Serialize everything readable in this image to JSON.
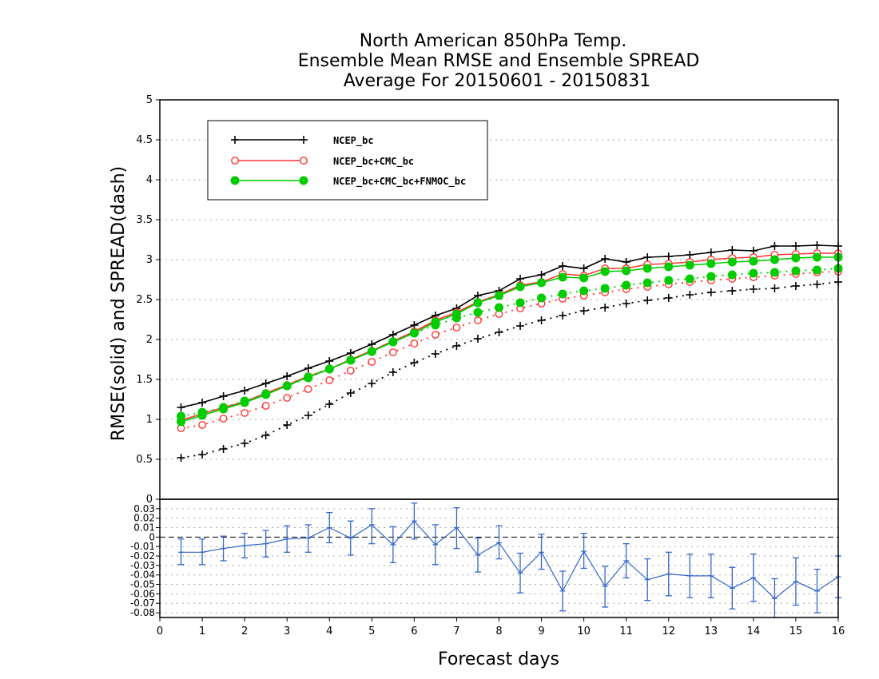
{
  "chart_data": [
    {
      "type": "line",
      "title": [
        "North American 850hPa Temp.",
        "Ensemble Mean RMSE and Ensemble SPREAD",
        "Average For 20150601 - 20150831"
      ],
      "ylabel": "RMSE(solid)  and  SPREAD(dash)",
      "xlabel": "Forecast days",
      "xlim": [
        0,
        16
      ],
      "ylim": [
        0,
        5
      ],
      "yticks": [
        0,
        0.5,
        1,
        1.5,
        2,
        2.5,
        3,
        3.5,
        4,
        4.5,
        5
      ],
      "ytick_labels": [
        "0",
        "0.5",
        "1",
        "1.5",
        "2",
        "2.5",
        "3",
        "3.5",
        "4",
        "4.5",
        "5"
      ],
      "grid": "horizontal dotted",
      "legend_position": "top-left",
      "x": [
        0.5,
        1,
        1.5,
        2,
        2.5,
        3,
        3.5,
        4,
        4.5,
        5,
        5.5,
        6,
        6.5,
        7,
        7.5,
        8,
        8.5,
        9,
        9.5,
        10,
        10.5,
        11,
        11.5,
        12,
        12.5,
        13,
        13.5,
        14,
        14.5,
        15,
        15.5,
        16
      ],
      "series": [
        {
          "name": "NCEP_bc",
          "color": "#000000",
          "marker": "plus",
          "rmse": [
            1.15,
            1.21,
            1.29,
            1.36,
            1.45,
            1.54,
            1.64,
            1.73,
            1.83,
            1.94,
            2.06,
            2.18,
            2.3,
            2.39,
            2.55,
            2.61,
            2.76,
            2.81,
            2.92,
            2.89,
            3.01,
            2.97,
            3.03,
            3.04,
            3.06,
            3.09,
            3.12,
            3.11,
            3.17,
            3.17,
            3.18,
            3.17
          ],
          "spread": [
            0.52,
            0.56,
            0.63,
            0.7,
            0.8,
            0.93,
            1.05,
            1.19,
            1.33,
            1.45,
            1.59,
            1.71,
            1.82,
            1.92,
            2.01,
            2.09,
            2.17,
            2.24,
            2.3,
            2.36,
            2.4,
            2.45,
            2.49,
            2.52,
            2.56,
            2.59,
            2.61,
            2.63,
            2.64,
            2.67,
            2.69,
            2.72
          ]
        },
        {
          "name": "NCEP_bc+CMC_bc",
          "color": "#ff3333",
          "marker": "open-circle",
          "rmse": [
            0.99,
            1.07,
            1.15,
            1.22,
            1.33,
            1.43,
            1.54,
            1.63,
            1.75,
            1.86,
            1.98,
            2.1,
            2.24,
            2.34,
            2.47,
            2.56,
            2.68,
            2.72,
            2.82,
            2.8,
            2.89,
            2.89,
            2.94,
            2.95,
            2.97,
            3.0,
            3.02,
            3.03,
            3.06,
            3.07,
            3.08,
            3.08
          ],
          "spread": [
            0.89,
            0.93,
            1.01,
            1.08,
            1.17,
            1.27,
            1.38,
            1.49,
            1.61,
            1.72,
            1.84,
            1.95,
            2.06,
            2.15,
            2.24,
            2.32,
            2.39,
            2.45,
            2.51,
            2.55,
            2.59,
            2.63,
            2.66,
            2.69,
            2.72,
            2.74,
            2.76,
            2.78,
            2.8,
            2.82,
            2.84,
            2.85
          ]
        },
        {
          "name": "NCEP_bc+CMC_bc+FNMOC_bc",
          "color": "#00cc00",
          "marker": "filled-circle",
          "rmse": [
            0.97,
            1.05,
            1.13,
            1.21,
            1.31,
            1.42,
            1.53,
            1.63,
            1.74,
            1.85,
            1.97,
            2.08,
            2.22,
            2.32,
            2.46,
            2.55,
            2.66,
            2.71,
            2.78,
            2.77,
            2.85,
            2.86,
            2.89,
            2.91,
            2.93,
            2.95,
            2.97,
            2.98,
            3.0,
            3.02,
            3.03,
            3.03
          ],
          "spread": [
            1.04,
            1.09,
            1.15,
            1.23,
            1.32,
            1.42,
            1.52,
            1.63,
            1.74,
            1.85,
            1.97,
            2.08,
            2.18,
            2.27,
            2.34,
            2.4,
            2.46,
            2.52,
            2.57,
            2.61,
            2.64,
            2.68,
            2.71,
            2.74,
            2.76,
            2.79,
            2.81,
            2.83,
            2.84,
            2.86,
            2.87,
            2.89
          ]
        }
      ]
    },
    {
      "type": "line",
      "subtype": "errorbar",
      "xlim": [
        0,
        16
      ],
      "ylim": [
        -0.085,
        0.04
      ],
      "yticks": [
        -0.08,
        -0.07,
        -0.06,
        -0.05,
        -0.04,
        -0.03,
        -0.02,
        -0.01,
        0,
        0.01,
        0.02,
        0.03
      ],
      "ytick_labels": [
        "-0.08",
        "-0.07",
        "-0.06",
        "-0.05",
        "-0.04",
        "-0.03",
        "-0.02",
        "-0.01",
        "0",
        "0.01",
        "0.02",
        "0.03"
      ],
      "xticks": [
        0,
        1,
        2,
        3,
        4,
        5,
        6,
        7,
        8,
        9,
        10,
        11,
        12,
        13,
        14,
        15,
        16
      ],
      "xtick_labels": [
        "0",
        "1",
        "2",
        "3",
        "4",
        "5",
        "6",
        "7",
        "8",
        "9",
        "10",
        "11",
        "12",
        "13",
        "14",
        "15",
        "16"
      ],
      "zero_line": "dashed",
      "grid": "horizontal dotted",
      "color": "#3366cc",
      "x": [
        0.5,
        1,
        1.5,
        2,
        2.5,
        3,
        3.5,
        4,
        4.5,
        5,
        5.5,
        6,
        6.5,
        7,
        7.5,
        8,
        8.5,
        9,
        9.5,
        10,
        10.5,
        11,
        11.5,
        12,
        12.5,
        13,
        13.5,
        14,
        14.5,
        15,
        15.5,
        16
      ],
      "values": [
        -0.016,
        -0.016,
        -0.012,
        -0.009,
        -0.007,
        -0.002,
        -0.001,
        0.01,
        -0.001,
        0.013,
        -0.008,
        0.017,
        -0.008,
        0.01,
        -0.019,
        -0.006,
        -0.038,
        -0.016,
        -0.057,
        -0.015,
        -0.052,
        -0.025,
        -0.045,
        -0.039,
        -0.041,
        -0.041,
        -0.054,
        -0.043,
        -0.065,
        -0.047,
        -0.057,
        -0.042
      ],
      "err_low": [
        -0.029,
        -0.029,
        -0.025,
        -0.022,
        -0.021,
        -0.016,
        -0.016,
        -0.006,
        -0.019,
        -0.007,
        -0.027,
        -0.002,
        -0.029,
        -0.012,
        -0.037,
        -0.023,
        -0.059,
        -0.034,
        -0.078,
        -0.033,
        -0.074,
        -0.043,
        -0.067,
        -0.062,
        -0.064,
        -0.064,
        -0.076,
        -0.068,
        -0.085,
        -0.072,
        -0.08,
        -0.064
      ],
      "err_high": [
        -0.002,
        -0.002,
        0.001,
        0.004,
        0.007,
        0.012,
        0.013,
        0.026,
        0.017,
        0.03,
        0.011,
        0.036,
        0.013,
        0.031,
        -0.001,
        0.012,
        -0.017,
        0.003,
        -0.036,
        0.004,
        -0.031,
        -0.007,
        -0.023,
        -0.016,
        -0.018,
        -0.018,
        -0.032,
        -0.018,
        -0.044,
        -0.022,
        -0.034,
        -0.02
      ]
    }
  ]
}
